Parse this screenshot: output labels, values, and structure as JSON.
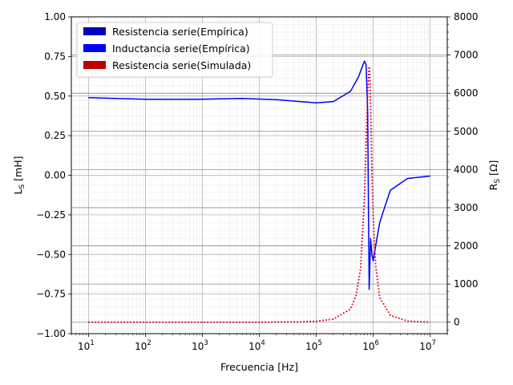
{
  "chart_data": {
    "type": "line",
    "title": "",
    "xlabel": "Frecuencia [Hz]",
    "ylabel_left": "L_S [mH]",
    "ylabel_right": "R_S [Ω]",
    "x_scale": "log",
    "xlim": [
      5,
      20000000
    ],
    "ylim_left": [
      -1.0,
      1.0
    ],
    "ylim_right": [
      -300,
      8000
    ],
    "x_ticks": [
      {
        "value": 10,
        "base": "10",
        "exp": "1"
      },
      {
        "value": 100,
        "base": "10",
        "exp": "2"
      },
      {
        "value": 1000,
        "base": "10",
        "exp": "3"
      },
      {
        "value": 10000,
        "base": "10",
        "exp": "4"
      },
      {
        "value": 100000,
        "base": "10",
        "exp": "5"
      },
      {
        "value": 1000000,
        "base": "10",
        "exp": "6"
      },
      {
        "value": 10000000,
        "base": "10",
        "exp": "7"
      }
    ],
    "y_ticks_left": [
      "1.00",
      "0.75",
      "0.50",
      "0.25",
      "0.00",
      "−0.25",
      "−0.50",
      "−0.75",
      "−1.00"
    ],
    "y_ticks_right": [
      "8000",
      "7000",
      "6000",
      "5000",
      "4000",
      "3000",
      "2000",
      "1000",
      "0"
    ],
    "grid": true,
    "legend_position": "top-left",
    "legend": [
      {
        "label": "Resistencia serie(Empírica)",
        "color": "#0000ff",
        "hatch": true
      },
      {
        "label": "Inductancia serie(Empírica)",
        "color": "#0000ff",
        "hatch": false
      },
      {
        "label": "Resistencia serie(Simulada)",
        "color": "#ff0000",
        "hatch": true
      }
    ],
    "series": [
      {
        "name": "Inductancia serie(Empírica)",
        "axis": "left",
        "color": "#0000ff",
        "style": "solid",
        "x": [
          10,
          100,
          1000,
          5000,
          20000,
          100000,
          200000,
          400000,
          550000,
          700000,
          750000,
          800000,
          850000,
          900000,
          950000,
          1000000,
          1100000,
          1300000,
          1500000,
          2000000,
          4000000,
          10000000
        ],
        "y": [
          0.49,
          0.48,
          0.48,
          0.485,
          0.477,
          0.457,
          0.465,
          0.53,
          0.62,
          0.72,
          0.7,
          0.4,
          -0.72,
          -0.4,
          -0.5,
          -0.54,
          -0.45,
          -0.3,
          -0.23,
          -0.095,
          -0.02,
          -0.005
        ]
      },
      {
        "name": "Resistencia serie(Empírica)",
        "axis": "right",
        "color": "#0000ff",
        "style": "dotted",
        "x": [
          10,
          100,
          1000,
          10000,
          50000,
          100000,
          200000,
          400000,
          500000,
          600000,
          700000,
          800000,
          850000,
          880000,
          900000,
          950000,
          1000000,
          1100000,
          1300000,
          2000000,
          4000000,
          10000000
        ],
        "y": [
          0,
          0,
          0,
          0,
          5,
          25,
          80,
          350,
          700,
          1400,
          3200,
          6000,
          6700,
          6400,
          5700,
          4000,
          2800,
          1500,
          650,
          180,
          30,
          0
        ]
      },
      {
        "name": "Resistencia serie(Simulada)",
        "axis": "right",
        "color": "#ff0000",
        "style": "dotted",
        "x": [
          10,
          100,
          1000,
          10000,
          50000,
          100000,
          200000,
          400000,
          500000,
          600000,
          700000,
          800000,
          850000,
          880000,
          900000,
          950000,
          1000000,
          1100000,
          1300000,
          2000000,
          4000000,
          10000000
        ],
        "y": [
          0,
          0,
          0,
          0,
          5,
          25,
          80,
          350,
          700,
          1400,
          3200,
          6000,
          6700,
          6400,
          5700,
          4000,
          2800,
          1500,
          650,
          180,
          30,
          0
        ]
      }
    ]
  }
}
